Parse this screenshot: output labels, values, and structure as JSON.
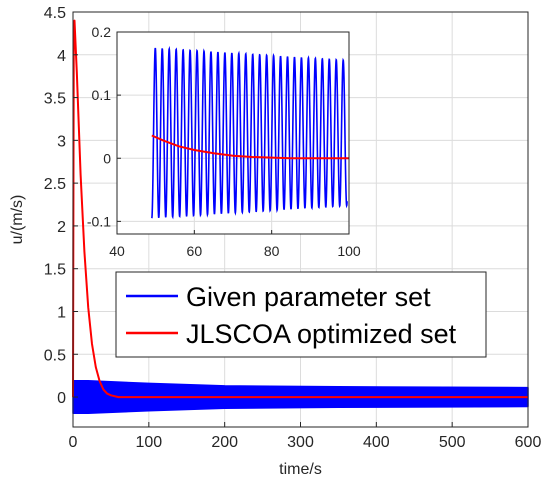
{
  "chart_data": [
    {
      "type": "line",
      "xlabel": "time/s",
      "ylabel": "u/(m/s)",
      "xlim": [
        0,
        600
      ],
      "ylim": [
        -0.35,
        4.5
      ],
      "xticks": [
        0,
        100,
        200,
        300,
        400,
        500,
        600
      ],
      "yticks": [
        0,
        0.5,
        1,
        1.5,
        2,
        2.5,
        3,
        3.5,
        4,
        4.5
      ],
      "xtick_labels": [
        "0",
        "100",
        "200",
        "300",
        "400",
        "500",
        "600"
      ],
      "ytick_labels": [
        "0",
        "0.5",
        "1",
        "1.5",
        "2",
        "2.5",
        "3",
        "3.5",
        "4",
        "4.5"
      ],
      "grid": true,
      "legend_placement": "center",
      "series": [
        {
          "name": "Given parameter set",
          "color": "#0000ff",
          "oscillating": true,
          "center": [
            [
              0,
              0.0
            ],
            [
              600,
              0.0
            ]
          ],
          "amplitude": [
            [
              0,
              0.19
            ],
            [
              20,
              0.19
            ],
            [
              100,
              0.16
            ],
            [
              200,
              0.13
            ],
            [
              350,
              0.12
            ],
            [
              600,
              0.11
            ]
          ]
        },
        {
          "name": "JLSCOA optimized set",
          "color": "#ff0000",
          "points": [
            [
              0,
              0.0
            ],
            [
              1,
              4.35
            ],
            [
              2,
              4.4
            ],
            [
              5,
              3.8
            ],
            [
              10,
              2.6
            ],
            [
              15,
              1.7
            ],
            [
              20,
              1.05
            ],
            [
              25,
              0.62
            ],
            [
              30,
              0.35
            ],
            [
              35,
              0.19
            ],
            [
              40,
              0.09
            ],
            [
              45,
              0.04
            ],
            [
              50,
              0.02
            ],
            [
              60,
              0.0
            ],
            [
              600,
              0.0
            ]
          ]
        }
      ]
    },
    {
      "type": "line",
      "inset": true,
      "xlim": [
        40,
        100
      ],
      "ylim": [
        -0.12,
        0.2
      ],
      "xticks": [
        40,
        60,
        80,
        100
      ],
      "yticks": [
        -0.1,
        0,
        0.1,
        0.2
      ],
      "xtick_labels": [
        "40",
        "60",
        "80",
        "100"
      ],
      "ytick_labels": [
        "-0.1",
        "0",
        "0.1",
        "0.2"
      ],
      "grid": true,
      "series": [
        {
          "name": "Given parameter set",
          "color": "#0000ff",
          "oscillation": {
            "x_start": 49,
            "x_end": 99.5,
            "period": 1.8,
            "center": 0.04,
            "amp_start": 0.135,
            "amp_end": 0.115
          }
        },
        {
          "name": "JLSCOA optimized set",
          "color": "#ff0000",
          "points": [
            [
              49,
              0.036
            ],
            [
              52,
              0.028
            ],
            [
              56,
              0.019
            ],
            [
              60,
              0.013
            ],
            [
              65,
              0.008
            ],
            [
              70,
              0.004
            ],
            [
              75,
              0.002
            ],
            [
              80,
              0.001
            ],
            [
              85,
              0.0
            ],
            [
              100,
              0.0
            ]
          ]
        }
      ]
    }
  ]
}
